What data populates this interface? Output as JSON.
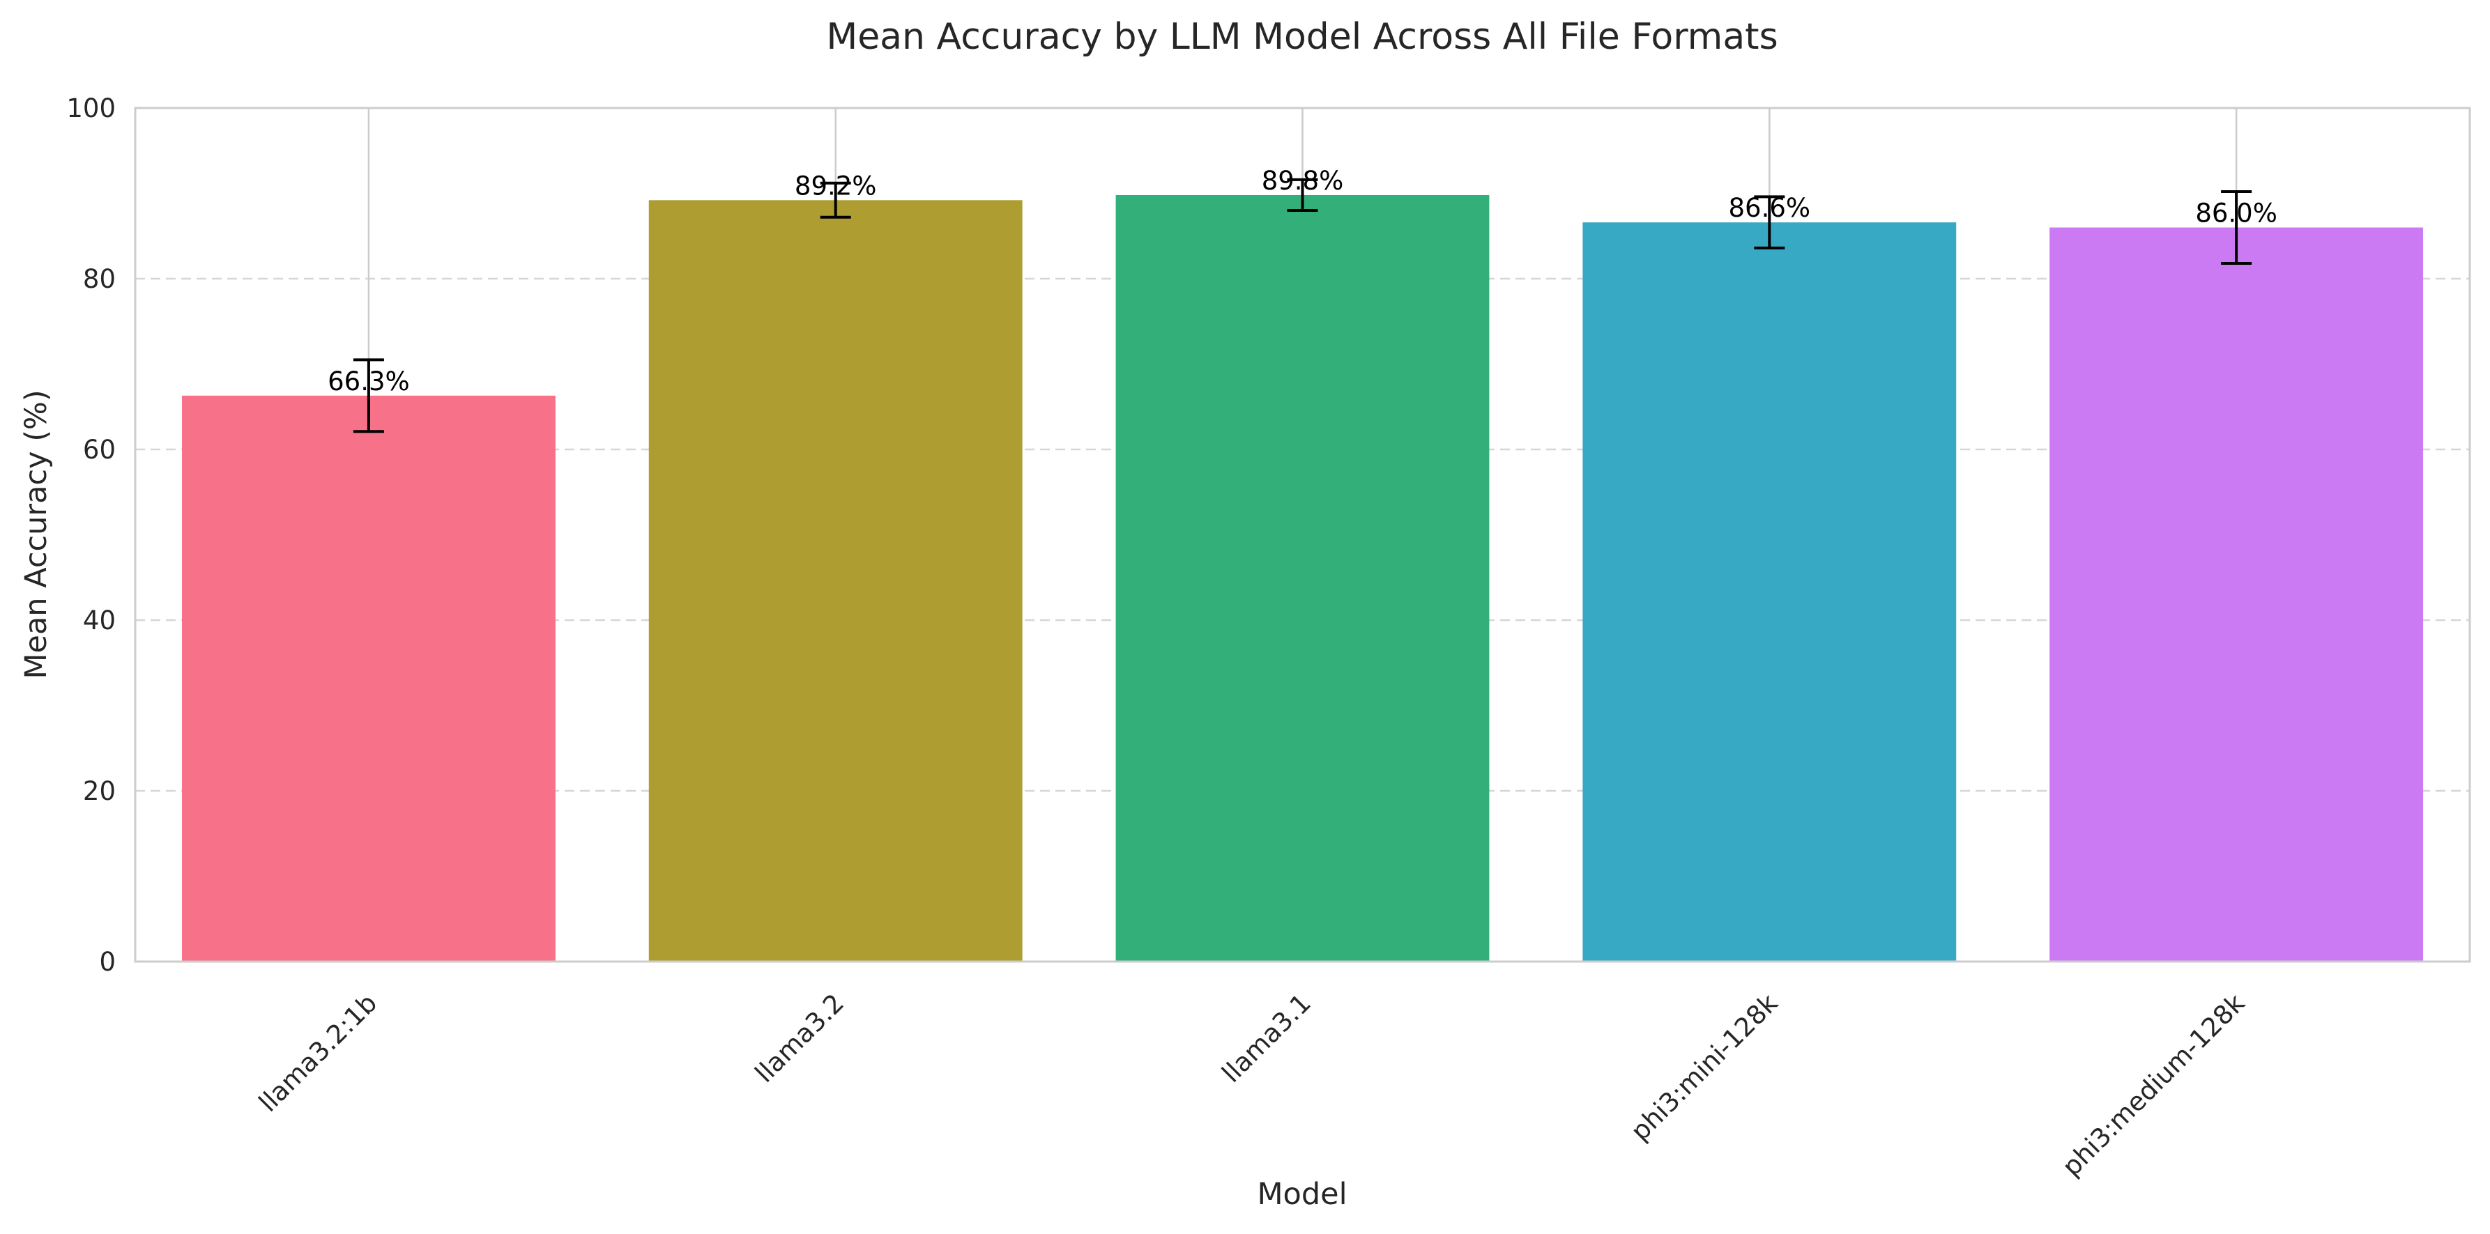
{
  "chart_data": {
    "type": "bar",
    "title": "Mean Accuracy by LLM Model Across All File Formats",
    "xlabel": "Model",
    "ylabel": "Mean Accuracy (%)",
    "ylim": [
      0,
      100
    ],
    "yticks": [
      0,
      20,
      40,
      60,
      80,
      100
    ],
    "grid": {
      "y": true,
      "y_style": "dashed",
      "x": true,
      "x_style": "solid"
    },
    "categories": [
      "llama3.2:1b",
      "llama3.2",
      "llama3.1",
      "phi3:mini-128k",
      "phi3:medium-128k"
    ],
    "values": [
      66.3,
      89.2,
      89.8,
      86.6,
      86.0
    ],
    "errors": [
      4.2,
      2.0,
      1.8,
      3.0,
      4.2
    ],
    "data_labels": [
      "66.3%",
      "89.2%",
      "89.8%",
      "86.6%",
      "86.0%"
    ],
    "colors": [
      "#f77189",
      "#ae9d31",
      "#33b07a",
      "#38a9c5",
      "#cc7af4"
    ],
    "tick_label_rotation": "45°"
  }
}
